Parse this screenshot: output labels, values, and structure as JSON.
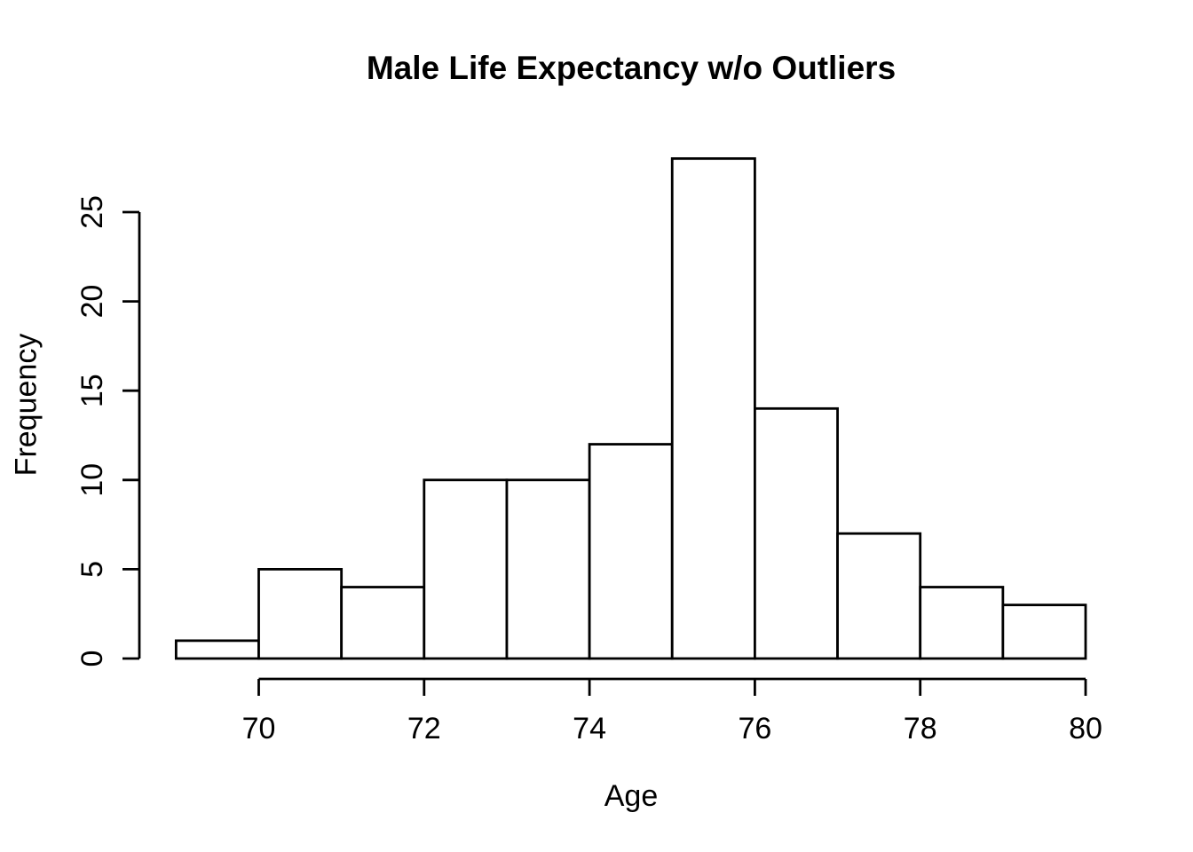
{
  "chart_data": {
    "type": "bar",
    "subtype": "histogram",
    "title": "Male Life Expectancy w/o Outliers",
    "xlabel": "Age",
    "ylabel": "Frequency",
    "bin_edges": [
      69,
      70,
      71,
      72,
      73,
      74,
      75,
      76,
      77,
      78,
      79,
      80
    ],
    "counts": [
      1,
      5,
      4,
      10,
      10,
      12,
      28,
      14,
      7,
      4,
      3
    ],
    "x_ticks": [
      70,
      72,
      74,
      76,
      78,
      80
    ],
    "y_ticks": [
      0,
      5,
      10,
      15,
      20,
      25
    ],
    "xlim": [
      69,
      80
    ],
    "ylim": [
      0,
      28
    ],
    "grid": false,
    "legend": false,
    "bar_fill": "#ffffff",
    "stroke_color": "#000000",
    "text_color": "#000000",
    "background_color": "#ffffff"
  }
}
